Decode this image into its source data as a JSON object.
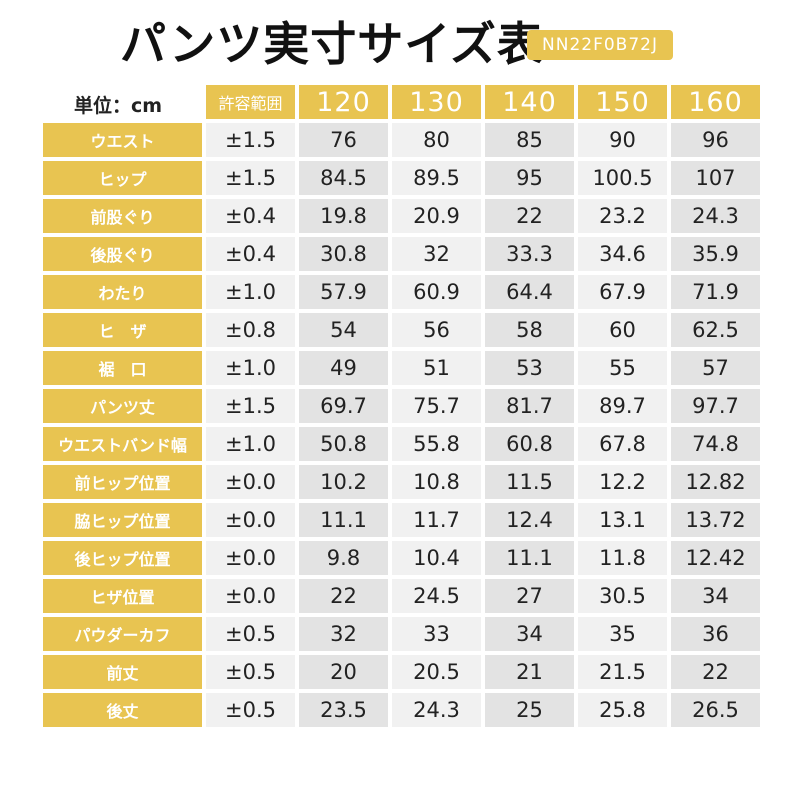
{
  "title": "パンツ実寸サイズ表",
  "product_code": "NN22F0B72J",
  "unit_label": "単位：cm",
  "columns": {
    "tolerance": "許容範囲",
    "sizes": [
      "120",
      "130",
      "140",
      "150",
      "160"
    ]
  },
  "rows": [
    {
      "label": "ウエスト",
      "tolerance": "±1.5",
      "values": [
        "76",
        "80",
        "85",
        "90",
        "96"
      ]
    },
    {
      "label": "ヒップ",
      "tolerance": "±1.5",
      "values": [
        "84.5",
        "89.5",
        "95",
        "100.5",
        "107"
      ]
    },
    {
      "label": "前股ぐり",
      "tolerance": "±0.4",
      "values": [
        "19.8",
        "20.9",
        "22",
        "23.2",
        "24.3"
      ]
    },
    {
      "label": "後股ぐり",
      "tolerance": "±0.4",
      "values": [
        "30.8",
        "32",
        "33.3",
        "34.6",
        "35.9"
      ]
    },
    {
      "label": "わたり",
      "tolerance": "±1.0",
      "values": [
        "57.9",
        "60.9",
        "64.4",
        "67.9",
        "71.9"
      ]
    },
    {
      "label": "ヒ　ザ",
      "tolerance": "±0.8",
      "values": [
        "54",
        "56",
        "58",
        "60",
        "62.5"
      ]
    },
    {
      "label": "裾　口",
      "tolerance": "±1.0",
      "values": [
        "49",
        "51",
        "53",
        "55",
        "57"
      ]
    },
    {
      "label": "パンツ丈",
      "tolerance": "±1.5",
      "values": [
        "69.7",
        "75.7",
        "81.7",
        "89.7",
        "97.7"
      ]
    },
    {
      "label": "ウエストバンド幅",
      "tolerance": "±1.0",
      "values": [
        "50.8",
        "55.8",
        "60.8",
        "67.8",
        "74.8"
      ]
    },
    {
      "label": "前ヒップ位置",
      "tolerance": "±0.0",
      "values": [
        "10.2",
        "10.8",
        "11.5",
        "12.2",
        "12.82"
      ]
    },
    {
      "label": "脇ヒップ位置",
      "tolerance": "±0.0",
      "values": [
        "11.1",
        "11.7",
        "12.4",
        "13.1",
        "13.72"
      ]
    },
    {
      "label": "後ヒップ位置",
      "tolerance": "±0.0",
      "values": [
        "9.8",
        "10.4",
        "11.1",
        "11.8",
        "12.42"
      ]
    },
    {
      "label": "ヒザ位置",
      "tolerance": "±0.0",
      "values": [
        "22",
        "24.5",
        "27",
        "30.5",
        "34"
      ]
    },
    {
      "label": "パウダーカフ",
      "tolerance": "±0.5",
      "values": [
        "32",
        "33",
        "34",
        "35",
        "36"
      ]
    },
    {
      "label": "前丈",
      "tolerance": "±0.5",
      "values": [
        "20",
        "20.5",
        "21",
        "21.5",
        "22"
      ]
    },
    {
      "label": "後丈",
      "tolerance": "±0.5",
      "values": [
        "23.5",
        "24.3",
        "25",
        "25.8",
        "26.5"
      ]
    }
  ],
  "colors": {
    "accent": "#e8c451",
    "cell_light": "#f1f1f1",
    "cell_dark": "#e3e3e3"
  }
}
